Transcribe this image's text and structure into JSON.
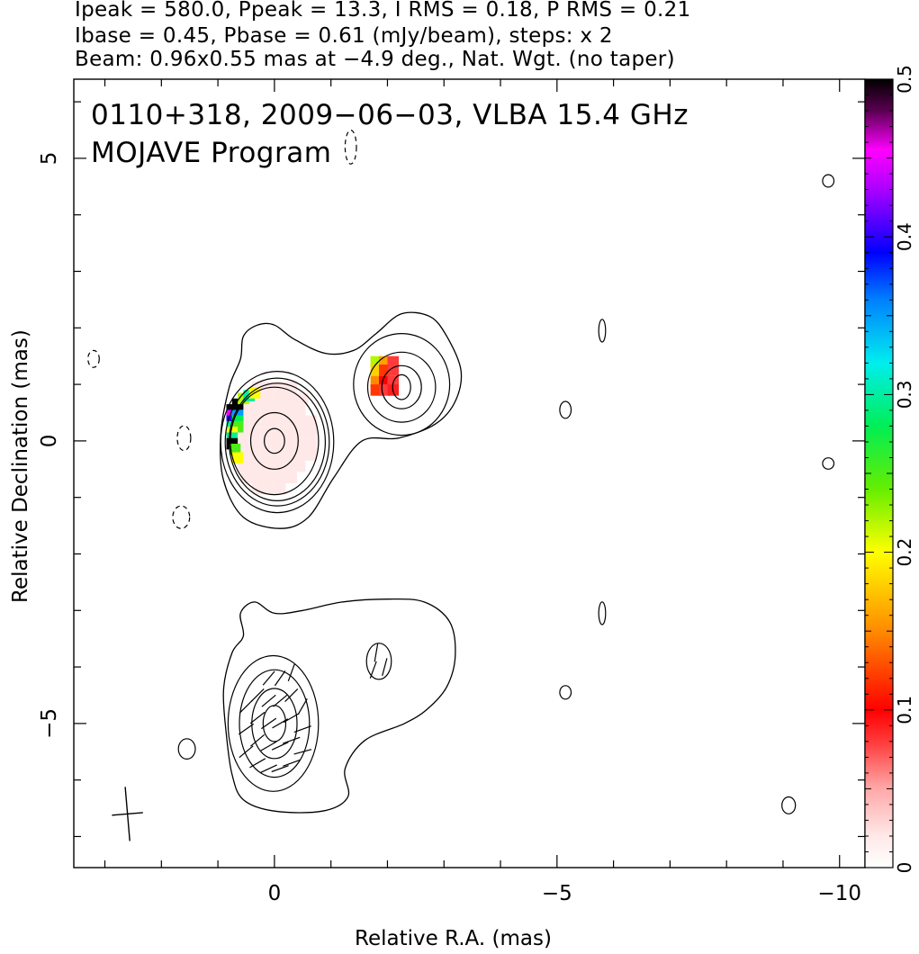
{
  "header": {
    "line1": "Ipeak = 580.0, Ppeak = 13.3, I RMS = 0.18, P RMS = 0.21",
    "line2": "Ibase = 0.45, Pbase = 0.61 (mJy/beam), steps: x 2",
    "line3": "Beam: 0.96x0.55 mas at −4.9 deg., Nat. Wgt. (no taper)"
  },
  "panel_label": {
    "line1": "0110+318, 2009−06−03, VLBA 15.4 GHz",
    "line2": "MOJAVE Program"
  },
  "chart_data": {
    "type": "contour",
    "xlabel": "Relative R.A. (mas)",
    "ylabel": "Relative Declination (mas)",
    "xlim": [
      3.55,
      -10.45
    ],
    "ylim": [
      -7.55,
      6.4
    ],
    "x_reversed": true,
    "x_ticks": [
      "0",
      "−5",
      "−10"
    ],
    "x_tick_values": [
      0,
      -5,
      -10
    ],
    "y_ticks": [
      "−5",
      "0",
      "5"
    ],
    "y_tick_values": [
      -5,
      0,
      5
    ],
    "colorbar": {
      "range": [
        0,
        0.5
      ],
      "tick_labels": [
        "0",
        "0.1",
        "0.2",
        "0.3",
        "0.4",
        "0.5"
      ],
      "tick_values": [
        0,
        0.1,
        0.2,
        0.3,
        0.4,
        0.5
      ]
    },
    "beam": {
      "major_mas": 0.96,
      "minor_mas": 0.55,
      "pa_deg": -4.9,
      "x": 2.6,
      "y": -6.6
    },
    "panels": [
      {
        "name": "upper",
        "contours": [
          {
            "x0": 0,
            "y0": 0,
            "rx": 0.78,
            "ry": 0.95,
            "rot": 0,
            "style": "solid"
          },
          {
            "x0": 0,
            "y0": 0,
            "rx": 0.42,
            "ry": 0.5,
            "rot": 0,
            "style": "solid"
          },
          {
            "x0": 0,
            "y0": 0,
            "rx": 0.18,
            "ry": 0.22,
            "rot": 0,
            "style": "solid"
          },
          {
            "x0": -2.25,
            "y0": 0.95,
            "rx": 0.6,
            "ry": 0.62,
            "rot": 0,
            "style": "solid"
          },
          {
            "x0": -2.25,
            "y0": 0.95,
            "rx": 0.35,
            "ry": 0.38,
            "rot": 0,
            "style": "solid"
          },
          {
            "x0": -2.25,
            "y0": 0.95,
            "rx": 0.16,
            "ry": 0.22,
            "rot": 0,
            "style": "solid"
          },
          {
            "x0": -5.15,
            "y0": 0.55,
            "rx": 0.1,
            "ry": 0.15,
            "rot": 0,
            "style": "solid"
          },
          {
            "x0": -5.8,
            "y0": 1.95,
            "rx": 0.06,
            "ry": 0.2,
            "rot": 0,
            "style": "solid"
          },
          {
            "x0": -9.8,
            "y0": 4.6,
            "rx": 0.1,
            "ry": 0.11,
            "rot": 0,
            "style": "solid"
          },
          {
            "x0": -9.8,
            "y0": -0.4,
            "rx": 0.1,
            "ry": 0.1,
            "rot": 0,
            "style": "solid"
          },
          {
            "x0": 1.6,
            "y0": 0.05,
            "rx": 0.12,
            "ry": 0.22,
            "rot": 0,
            "style": "dashed"
          },
          {
            "x0": 1.65,
            "y0": -1.35,
            "rx": 0.15,
            "ry": 0.2,
            "rot": 0,
            "style": "dashed"
          },
          {
            "x0": 3.2,
            "y0": 1.45,
            "rx": 0.1,
            "ry": 0.15,
            "rot": 0,
            "style": "dashed"
          },
          {
            "x0": -1.35,
            "y0": 5.2,
            "rx": 0.1,
            "ry": 0.3,
            "rot": 0,
            "style": "dashed"
          }
        ],
        "fracpol_pixels": [
          {
            "x": 0.3,
            "y": 0.95,
            "v": 0.02
          },
          {
            "x": 0.1,
            "y": 0.95,
            "v": 0.02
          },
          {
            "x": -0.1,
            "y": 0.95,
            "v": 0.02
          },
          {
            "x": -0.3,
            "y": 0.95,
            "v": 0.02
          },
          {
            "x": 0.5,
            "y": 0.75,
            "v": 0.02
          },
          {
            "x": 0.3,
            "y": 0.75,
            "v": 0.02
          },
          {
            "x": 0.1,
            "y": 0.75,
            "v": 0.02
          },
          {
            "x": -0.1,
            "y": 0.75,
            "v": 0.02
          },
          {
            "x": -0.3,
            "y": 0.75,
            "v": 0.02
          },
          {
            "x": -0.5,
            "y": 0.75,
            "v": 0.02
          },
          {
            "x": 0.55,
            "y": 0.55,
            "v": 0.02
          },
          {
            "x": 0.35,
            "y": 0.55,
            "v": 0.02
          },
          {
            "x": 0.15,
            "y": 0.55,
            "v": 0.02
          },
          {
            "x": -0.05,
            "y": 0.55,
            "v": 0.02
          },
          {
            "x": -0.25,
            "y": 0.55,
            "v": 0.02
          },
          {
            "x": -0.45,
            "y": 0.55,
            "v": 0.02
          },
          {
            "x": 0.55,
            "y": 0.35,
            "v": 0.02
          },
          {
            "x": 0.35,
            "y": 0.35,
            "v": 0.02
          },
          {
            "x": 0.15,
            "y": 0.35,
            "v": 0.02
          },
          {
            "x": -0.05,
            "y": 0.35,
            "v": 0.02
          },
          {
            "x": -0.25,
            "y": 0.35,
            "v": 0.02
          },
          {
            "x": -0.45,
            "y": 0.35,
            "v": 0.02
          },
          {
            "x": -0.65,
            "y": 0.35,
            "v": 0.02
          },
          {
            "x": 0.55,
            "y": 0.15,
            "v": 0.02
          },
          {
            "x": 0.35,
            "y": 0.15,
            "v": 0.02
          },
          {
            "x": 0.15,
            "y": 0.15,
            "v": 0.02
          },
          {
            "x": -0.05,
            "y": 0.15,
            "v": 0.02
          },
          {
            "x": -0.25,
            "y": 0.15,
            "v": 0.02
          },
          {
            "x": -0.45,
            "y": 0.15,
            "v": 0.02
          },
          {
            "x": -0.65,
            "y": 0.15,
            "v": 0.02
          },
          {
            "x": 0.55,
            "y": -0.05,
            "v": 0.02
          },
          {
            "x": 0.35,
            "y": -0.05,
            "v": 0.02
          },
          {
            "x": 0.15,
            "y": -0.05,
            "v": 0.02
          },
          {
            "x": -0.05,
            "y": -0.05,
            "v": 0.02
          },
          {
            "x": -0.25,
            "y": -0.05,
            "v": 0.02
          },
          {
            "x": -0.45,
            "y": -0.05,
            "v": 0.02
          },
          {
            "x": -0.65,
            "y": -0.05,
            "v": 0.02
          },
          {
            "x": 0.55,
            "y": -0.25,
            "v": 0.02
          },
          {
            "x": 0.35,
            "y": -0.25,
            "v": 0.02
          },
          {
            "x": 0.15,
            "y": -0.25,
            "v": 0.02
          },
          {
            "x": -0.05,
            "y": -0.25,
            "v": 0.02
          },
          {
            "x": -0.25,
            "y": -0.25,
            "v": 0.02
          },
          {
            "x": -0.45,
            "y": -0.25,
            "v": 0.02
          },
          {
            "x": -0.65,
            "y": -0.25,
            "v": 0.02
          },
          {
            "x": 0.55,
            "y": -0.45,
            "v": 0.02
          },
          {
            "x": 0.35,
            "y": -0.45,
            "v": 0.02
          },
          {
            "x": 0.15,
            "y": -0.45,
            "v": 0.02
          },
          {
            "x": -0.05,
            "y": -0.45,
            "v": 0.02
          },
          {
            "x": -0.25,
            "y": -0.45,
            "v": 0.02
          },
          {
            "x": -0.45,
            "y": -0.45,
            "v": 0.02
          },
          {
            "x": 0.5,
            "y": -0.65,
            "v": 0.02
          },
          {
            "x": 0.3,
            "y": -0.65,
            "v": 0.02
          },
          {
            "x": 0.1,
            "y": -0.65,
            "v": 0.02
          },
          {
            "x": -0.1,
            "y": -0.65,
            "v": 0.02
          },
          {
            "x": -0.3,
            "y": -0.65,
            "v": 0.02
          },
          {
            "x": 0.3,
            "y": -0.85,
            "v": 0.02
          },
          {
            "x": 0.1,
            "y": -0.85,
            "v": 0.02
          },
          {
            "x": -0.1,
            "y": -0.85,
            "v": 0.02
          },
          {
            "x": 0.75,
            "y": 0.55,
            "v": 0.5
          },
          {
            "x": 0.75,
            "y": 0.45,
            "v": 0.45
          },
          {
            "x": 0.75,
            "y": 0.35,
            "v": 0.4
          },
          {
            "x": 0.75,
            "y": 0.25,
            "v": 0.3
          },
          {
            "x": 0.65,
            "y": 0.65,
            "v": 0.5
          },
          {
            "x": 0.65,
            "y": 0.45,
            "v": 0.35
          },
          {
            "x": 0.65,
            "y": 0.35,
            "v": 0.28
          },
          {
            "x": 0.65,
            "y": 0.25,
            "v": 0.25
          },
          {
            "x": 0.55,
            "y": 0.75,
            "v": 0.22
          },
          {
            "x": 0.45,
            "y": 0.8,
            "v": 0.3
          },
          {
            "x": 0.35,
            "y": 0.85,
            "v": 0.2
          },
          {
            "x": 0.75,
            "y": 0.15,
            "v": 0.2
          },
          {
            "x": 0.75,
            "y": 0.05,
            "v": 0.3
          },
          {
            "x": 0.75,
            "y": -0.05,
            "v": 0.5
          },
          {
            "x": 0.7,
            "y": -0.15,
            "v": 0.25
          },
          {
            "x": 0.65,
            "y": -0.3,
            "v": 0.2
          },
          {
            "x": -1.8,
            "y": 1.4,
            "v": 0.22
          },
          {
            "x": -1.8,
            "y": 1.25,
            "v": 0.18
          },
          {
            "x": -1.8,
            "y": 1.05,
            "v": 0.15
          },
          {
            "x": -1.8,
            "y": 0.9,
            "v": 0.12
          },
          {
            "x": -1.95,
            "y": 1.4,
            "v": 0.16
          },
          {
            "x": -1.95,
            "y": 1.25,
            "v": 0.12
          },
          {
            "x": -1.95,
            "y": 1.05,
            "v": 0.1
          },
          {
            "x": -1.95,
            "y": 0.9,
            "v": 0.08
          },
          {
            "x": -2.1,
            "y": 1.4,
            "v": 0.08
          },
          {
            "x": -2.1,
            "y": 1.25,
            "v": 0.08
          },
          {
            "x": -2.1,
            "y": 1.05,
            "v": 0.08
          },
          {
            "x": -2.1,
            "y": 0.9,
            "v": 0.09
          }
        ]
      },
      {
        "name": "lower",
        "contours": [
          {
            "x0": 0,
            "y0": -5,
            "rx": 0.62,
            "ry": 0.95,
            "rot": 0,
            "style": "solid"
          },
          {
            "x0": 0,
            "y0": -5,
            "rx": 0.4,
            "ry": 0.62,
            "rot": 0,
            "style": "solid"
          },
          {
            "x0": 0,
            "y0": -5,
            "rx": 0.2,
            "ry": 0.32,
            "rot": 0,
            "style": "solid"
          },
          {
            "x0": -1.85,
            "y0": -3.9,
            "rx": 0.22,
            "ry": 0.32,
            "rot": 0,
            "style": "solid"
          },
          {
            "x0": -5.15,
            "y0": -4.45,
            "rx": 0.1,
            "ry": 0.12,
            "rot": 0,
            "style": "solid"
          },
          {
            "x0": -5.8,
            "y0": -3.05,
            "rx": 0.06,
            "ry": 0.2,
            "rot": 0,
            "style": "solid"
          },
          {
            "x0": 1.55,
            "y0": -5.45,
            "rx": 0.15,
            "ry": 0.18,
            "rot": 0,
            "style": "solid"
          },
          {
            "x0": -9.1,
            "y0": -6.45,
            "rx": 0.12,
            "ry": 0.15,
            "rot": 0,
            "style": "solid"
          }
        ],
        "evpa_vectors": [
          {
            "x": 0.5,
            "y": -5.5,
            "angle_deg": 40
          },
          {
            "x": 0.5,
            "y": -5.1,
            "angle_deg": 35
          },
          {
            "x": 0.5,
            "y": -4.7,
            "angle_deg": 45
          },
          {
            "x": 0.3,
            "y": -5.7,
            "angle_deg": 30
          },
          {
            "x": 0.3,
            "y": -5.3,
            "angle_deg": 40
          },
          {
            "x": 0.3,
            "y": -4.9,
            "angle_deg": 38
          },
          {
            "x": 0.3,
            "y": -4.5,
            "angle_deg": 45
          },
          {
            "x": 0.1,
            "y": -5.8,
            "angle_deg": 25
          },
          {
            "x": 0.1,
            "y": -5.4,
            "angle_deg": 30
          },
          {
            "x": 0.1,
            "y": -5.0,
            "angle_deg": 35
          },
          {
            "x": 0.1,
            "y": -4.6,
            "angle_deg": 40
          },
          {
            "x": 0.1,
            "y": -4.2,
            "angle_deg": 50
          },
          {
            "x": -0.1,
            "y": -5.8,
            "angle_deg": 20
          },
          {
            "x": -0.1,
            "y": -5.4,
            "angle_deg": 25
          },
          {
            "x": -0.1,
            "y": -5.0,
            "angle_deg": 30
          },
          {
            "x": -0.1,
            "y": -4.6,
            "angle_deg": 40
          },
          {
            "x": -0.1,
            "y": -4.2,
            "angle_deg": 55
          },
          {
            "x": -0.3,
            "y": -5.7,
            "angle_deg": 20
          },
          {
            "x": -0.3,
            "y": -5.3,
            "angle_deg": 20
          },
          {
            "x": -0.3,
            "y": -4.9,
            "angle_deg": 30
          },
          {
            "x": -0.3,
            "y": -4.5,
            "angle_deg": 45
          },
          {
            "x": -0.3,
            "y": -4.1,
            "angle_deg": 70
          },
          {
            "x": -0.5,
            "y": -5.5,
            "angle_deg": 15
          },
          {
            "x": -0.5,
            "y": -5.1,
            "angle_deg": 20
          },
          {
            "x": -0.5,
            "y": -4.7,
            "angle_deg": 60
          },
          {
            "x": -1.8,
            "y": -3.75,
            "angle_deg": 80
          },
          {
            "x": -1.95,
            "y": -4.0,
            "angle_deg": 75
          },
          {
            "x": -1.75,
            "y": -4.05,
            "angle_deg": 70
          }
        ]
      }
    ]
  }
}
